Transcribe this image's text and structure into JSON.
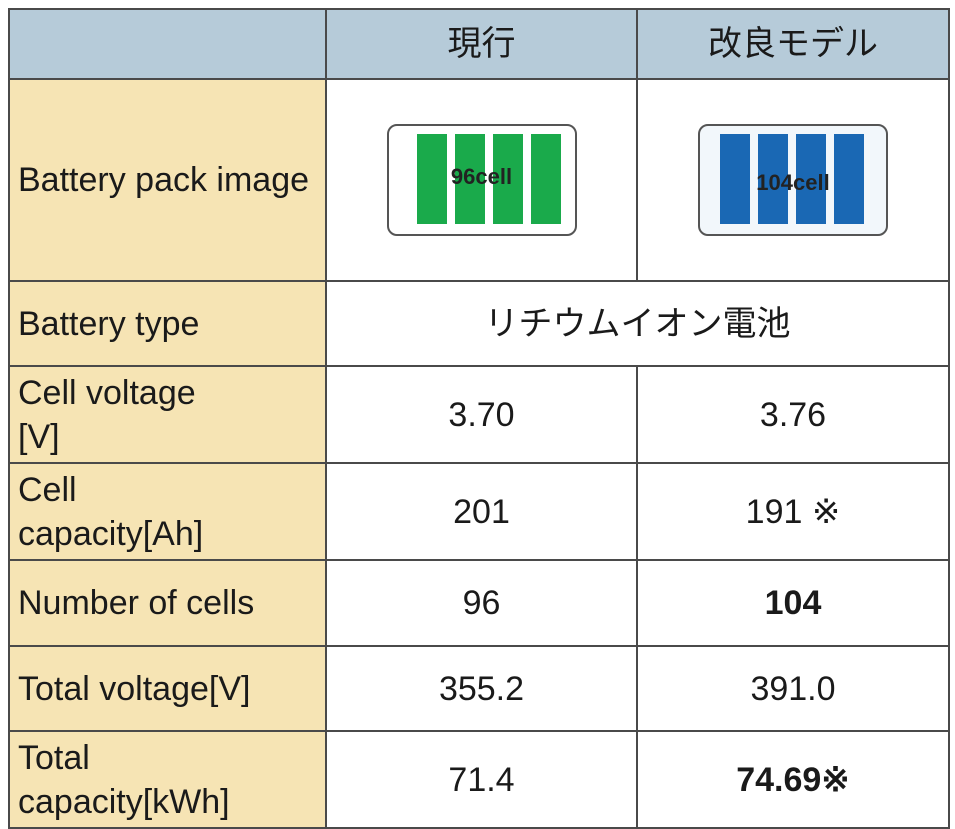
{
  "table": {
    "header": [
      "現行",
      "改良モデル"
    ],
    "pack_row": {
      "label": "Battery pack image",
      "values": [
        "96cell",
        "104cell"
      ]
    },
    "type_row": {
      "label": "Battery type",
      "value": "リチウムイオン電池"
    },
    "rows": [
      {
        "label": "Cell voltage\n[V]",
        "values": [
          "3.70",
          "3.76"
        ]
      },
      {
        "label": "Cell\ncapacity[Ah]",
        "values": [
          "201",
          "191 ※"
        ]
      },
      {
        "label": "Number of cells",
        "values": [
          "96",
          "104"
        ]
      },
      {
        "label": "Total voltage[V]",
        "values": [
          "355.2",
          "391.0"
        ]
      },
      {
        "label": "Total\ncapacity[kWh]",
        "values": [
          "71.4",
          "74.69※"
        ]
      }
    ]
  }
}
